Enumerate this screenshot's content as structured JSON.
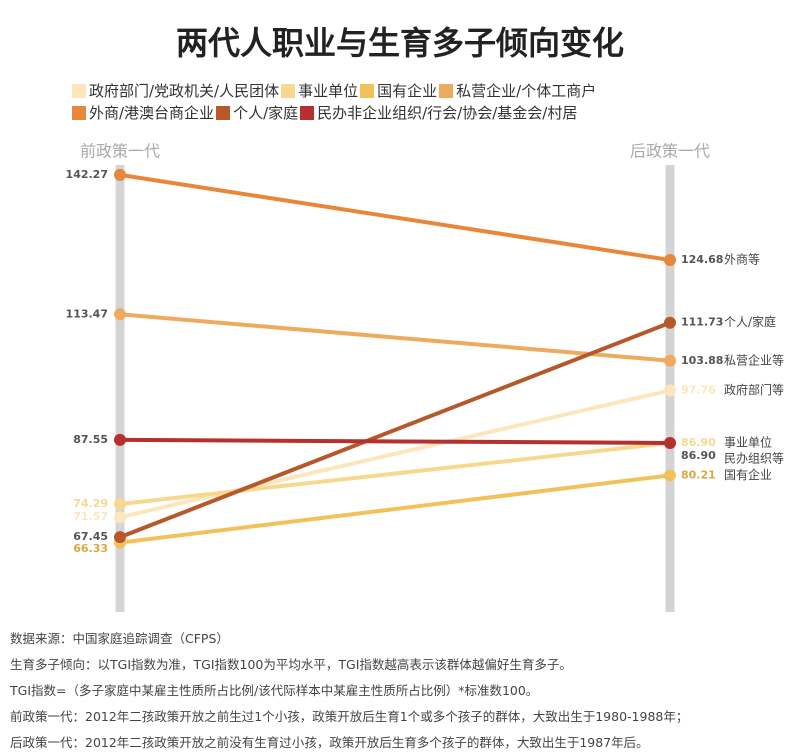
{
  "chart_data": {
    "type": "slope",
    "title": "两代人职业与生育多子倾向变化",
    "x": [
      "前政策一代",
      "后政策一代"
    ],
    "ylim": [
      52,
      144.3
    ],
    "series": [
      {
        "name": "政府部门/党政机关/人民团体",
        "color": "#fbe6bd",
        "values": [
          71.57,
          97.76
        ],
        "value_labels": [
          "71.57",
          "97.76"
        ],
        "label": "政府部门等"
      },
      {
        "name": "事业单位",
        "color": "#f8d88e",
        "values": [
          74.29,
          86.9
        ],
        "value_labels": [
          "74.29",
          "86.90"
        ],
        "label": "事业单位"
      },
      {
        "name": "国有企业",
        "color": "#f1c25a",
        "values": [
          66.33,
          80.21
        ],
        "value_labels": [
          "66.33",
          "80.21"
        ],
        "label": "国有企业"
      },
      {
        "name": "私营企业/个体工商户",
        "color": "#eeaa5e",
        "values": [
          113.47,
          103.88
        ],
        "value_labels": [
          "113.47",
          "103.88"
        ],
        "label": "私营企业等"
      },
      {
        "name": "外商/港澳台商企业",
        "color": "#e8873a",
        "values": [
          142.27,
          124.68
        ],
        "value_labels": [
          "142.27",
          "124.68"
        ],
        "label": "外商等"
      },
      {
        "name": "个人/家庭",
        "color": "#b6582a",
        "values": [
          67.45,
          111.73
        ],
        "value_labels": [
          "67.45",
          "111.73"
        ],
        "label": "个人/家庭"
      },
      {
        "name": "民办非企业组织/行会/协会/基金会/村居",
        "color": "#b5302e",
        "values": [
          87.55,
          86.9
        ],
        "value_labels": [
          "87.55",
          "86.90"
        ],
        "label": "民办组织等"
      }
    ],
    "notes": [
      "数据来源：中国家庭追踪调查（CFPS）",
      "生育多子倾向：以TGI指数为准，TGI指数100为平均水平，TGI指数越高表示该群体越偏好生育多子。",
      "TGI指数=（多子家庭中某雇主性质所占比例/该代际样本中某雇主性质所占比例）*标准数100。",
      "前政策一代：2012年二孩政策开放之前生过1个小孩，政策开放后生育1个或多个孩子的群体，大致出生于1980-1988年；",
      "后政策一代：2012年二孩政策开放之前没有生育过小孩，政策开放后生育多个孩子的群体，大致出生于1987年后。"
    ]
  }
}
